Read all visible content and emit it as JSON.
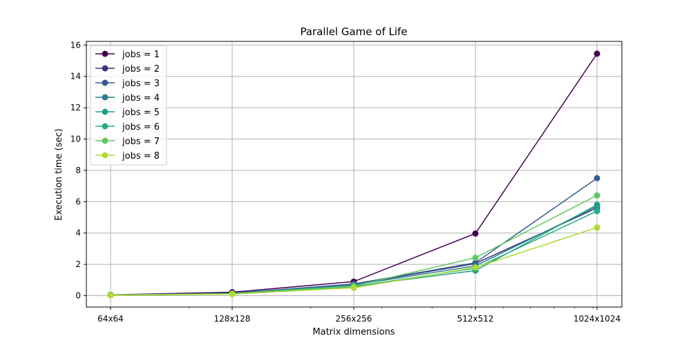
{
  "chart_data": {
    "type": "line",
    "title": "Parallel Game of Life",
    "xlabel": "Matrix dimensions",
    "ylabel": "Execution time (sec)",
    "x_scale": "log2",
    "categories": [
      "64x64",
      "128x128",
      "256x256",
      "512x512",
      "1024x1024"
    ],
    "ylim": [
      -0.8,
      16.5
    ],
    "yticks": [
      0,
      2,
      4,
      6,
      8,
      10,
      12,
      14,
      16
    ],
    "grid": true,
    "legend_position": "upper left",
    "series": [
      {
        "name": "jobs = 1",
        "color": "#440154",
        "values": [
          0.05,
          0.22,
          0.9,
          3.97,
          15.45
        ]
      },
      {
        "name": "jobs = 2",
        "color": "#46327e",
        "values": [
          0.04,
          0.16,
          0.72,
          2.05,
          5.6
        ]
      },
      {
        "name": "jobs = 3",
        "color": "#365c8d",
        "values": [
          0.04,
          0.15,
          0.75,
          2.1,
          7.5
        ]
      },
      {
        "name": "jobs = 4",
        "color": "#277f8e",
        "values": [
          0.04,
          0.14,
          0.68,
          1.9,
          5.7
        ]
      },
      {
        "name": "jobs = 5",
        "color": "#1fa187",
        "values": [
          0.04,
          0.13,
          0.6,
          1.6,
          5.8
        ]
      },
      {
        "name": "jobs = 6",
        "color": "#27ad81",
        "values": [
          0.04,
          0.12,
          0.58,
          1.75,
          5.4
        ]
      },
      {
        "name": "jobs = 7",
        "color": "#5ec962",
        "values": [
          0.04,
          0.12,
          0.62,
          2.42,
          6.4
        ]
      },
      {
        "name": "jobs = 8",
        "color": "#addc30",
        "values": [
          0.03,
          0.1,
          0.5,
          1.8,
          4.35
        ]
      }
    ]
  }
}
